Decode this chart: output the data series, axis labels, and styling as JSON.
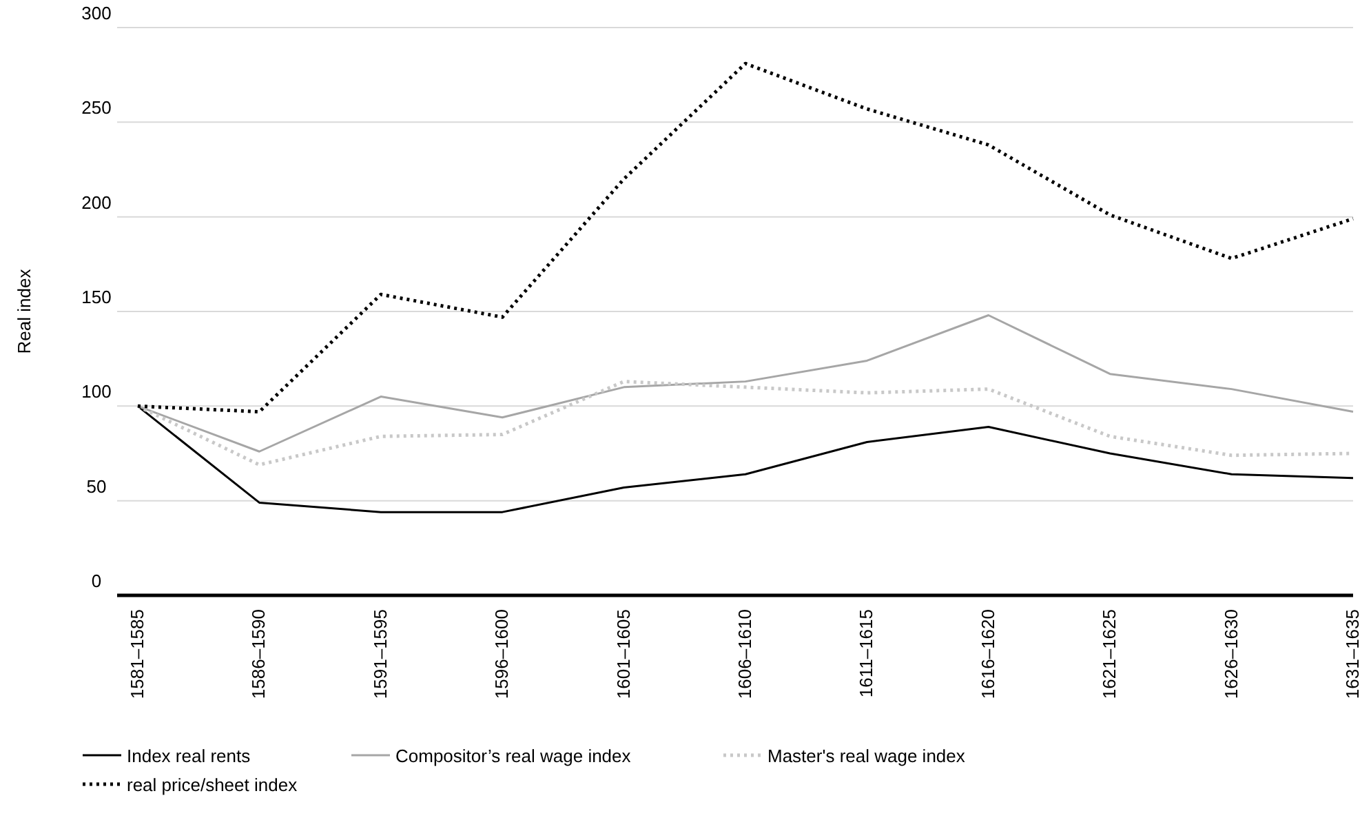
{
  "chart_data": {
    "type": "line",
    "ylabel": "Real index",
    "categories": [
      "1581–1585",
      "1586–1590",
      "1591–1595",
      "1596–1600",
      "1601–1605",
      "1606–1610",
      "1611–1615",
      "1616–1620",
      "1621–1625",
      "1626–1630",
      "1631–1635"
    ],
    "ylim": [
      0,
      300
    ],
    "yticks": [
      0,
      50,
      100,
      150,
      200,
      250,
      300
    ],
    "grid": "y",
    "legend": "bottom",
    "marker": "none",
    "series": [
      {
        "name": "Index real rents",
        "color": "#000000",
        "line_style": "solid",
        "values": [
          100,
          49,
          44,
          44,
          57,
          64,
          81,
          89,
          75,
          64,
          62
        ]
      },
      {
        "name": "Compositor’s real wage index",
        "color": "#a6a6a6",
        "line_style": "solid",
        "values": [
          100,
          76,
          105,
          94,
          110,
          113,
          124,
          148,
          117,
          109,
          97
        ]
      },
      {
        "name": "Master's real wage index",
        "color": "#c8c8c8",
        "line_style": "dotted",
        "values": [
          100,
          69,
          84,
          85,
          113,
          110,
          107,
          109,
          84,
          74,
          75
        ]
      },
      {
        "name": "real price/sheet index",
        "color": "#000000",
        "line_style": "dotted",
        "values": [
          100,
          97,
          159,
          147,
          220,
          281,
          257,
          238,
          201,
          178,
          199
        ]
      }
    ]
  }
}
